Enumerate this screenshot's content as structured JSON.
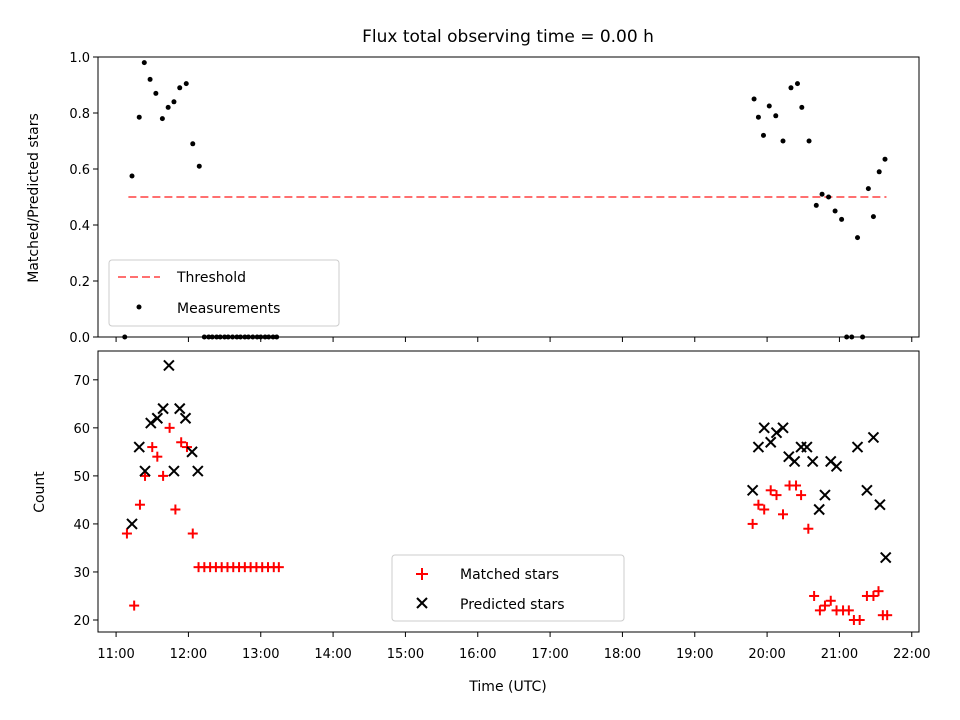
{
  "title": "Flux total observing time = 0.00 h",
  "chart_data": [
    {
      "type": "scatter",
      "ylabel": "Matched/Predicted stars",
      "ylim": [
        0,
        1.0
      ],
      "yticks": [
        "0.0",
        "0.2",
        "0.4",
        "0.6",
        "0.8",
        "1.0"
      ],
      "xlim_hours": [
        10.75,
        22.1
      ],
      "threshold": {
        "name": "Threshold",
        "y": 0.5,
        "x_start": 11.17,
        "x_end": 21.65,
        "color": "#ff7070"
      },
      "legend_position": "lower-left",
      "series": [
        {
          "name": "Measurements",
          "color": "#000000",
          "x": [
            11.12,
            11.22,
            11.32,
            11.39,
            11.47,
            11.55,
            11.64,
            11.72,
            11.8,
            11.88,
            11.97,
            12.06,
            12.15,
            12.22,
            12.28,
            12.33,
            12.39,
            12.44,
            12.5,
            12.55,
            12.61,
            12.67,
            12.72,
            12.78,
            12.83,
            12.89,
            12.95,
            13.0,
            13.06,
            13.11,
            13.17,
            13.22,
            19.82,
            19.88,
            19.95,
            20.03,
            20.12,
            20.22,
            20.33,
            20.42,
            20.48,
            20.58,
            20.68,
            20.76,
            20.85,
            20.94,
            21.03,
            21.1,
            21.17,
            21.25,
            21.32,
            21.4,
            21.47,
            21.55,
            21.63
          ],
          "y": [
            0.0,
            0.575,
            0.785,
            0.98,
            0.92,
            0.87,
            0.78,
            0.82,
            0.84,
            0.89,
            0.905,
            0.69,
            0.61,
            0.0,
            0.0,
            0.0,
            0.0,
            0.0,
            0.0,
            0.0,
            0.0,
            0.0,
            0.0,
            0.0,
            0.0,
            0.0,
            0.0,
            0.0,
            0.0,
            0.0,
            0.0,
            0.0,
            0.85,
            0.785,
            0.72,
            0.825,
            0.79,
            0.7,
            0.89,
            0.905,
            0.82,
            0.7,
            0.47,
            0.51,
            0.5,
            0.45,
            0.42,
            0.0,
            0.0,
            0.355,
            0.0,
            0.53,
            0.43,
            0.59,
            0.635
          ]
        }
      ]
    },
    {
      "type": "scatter",
      "xlabel": "Time (UTC)",
      "ylabel": "Count",
      "ylim": [
        17.5,
        76
      ],
      "yticks": [
        "20",
        "30",
        "40",
        "50",
        "60",
        "70"
      ],
      "xlim_hours": [
        10.75,
        22.1
      ],
      "xticks": [
        "11:00",
        "12:00",
        "13:00",
        "14:00",
        "15:00",
        "16:00",
        "17:00",
        "18:00",
        "19:00",
        "20:00",
        "21:00",
        "22:00"
      ],
      "legend_position": "lower-center",
      "series": [
        {
          "name": "Matched stars",
          "color": "#ff0000",
          "marker": "plus",
          "x": [
            11.15,
            11.25,
            11.33,
            11.4,
            11.5,
            11.57,
            11.65,
            11.74,
            11.82,
            11.9,
            11.98,
            12.06,
            12.14,
            12.22,
            12.3,
            12.38,
            12.46,
            12.54,
            12.62,
            12.7,
            12.78,
            12.86,
            12.94,
            13.02,
            13.1,
            13.18,
            13.25,
            19.8,
            19.88,
            19.96,
            20.05,
            20.13,
            20.22,
            20.31,
            20.4,
            20.47,
            20.57,
            20.65,
            20.73,
            20.8,
            20.88,
            20.96,
            21.05,
            21.13,
            21.2,
            21.28,
            21.38,
            21.47,
            21.54,
            21.6,
            21.66
          ],
          "y": [
            38,
            23,
            44,
            50,
            56,
            54,
            50,
            60,
            43,
            57,
            56,
            38,
            31,
            31,
            31,
            31,
            31,
            31,
            31,
            31,
            31,
            31,
            31,
            31,
            31,
            31,
            31,
            40,
            44,
            43,
            47,
            46,
            42,
            48,
            48,
            46,
            39,
            25,
            22,
            23,
            24,
            22,
            22,
            22,
            20,
            20,
            25,
            25,
            26,
            21,
            21
          ]
        },
        {
          "name": "Predicted stars",
          "color": "#000000",
          "marker": "x",
          "x": [
            11.22,
            11.32,
            11.4,
            11.48,
            11.57,
            11.65,
            11.73,
            11.8,
            11.88,
            11.96,
            12.05,
            12.13,
            19.8,
            19.88,
            19.96,
            20.05,
            20.13,
            20.22,
            20.3,
            20.38,
            20.47,
            20.55,
            20.63,
            20.72,
            20.8,
            20.88,
            20.96,
            21.25,
            21.38,
            21.47,
            21.56,
            21.64
          ],
          "y": [
            40,
            56,
            51,
            61,
            62,
            64,
            73,
            51,
            64,
            62,
            55,
            51,
            47,
            56,
            60,
            57,
            59,
            60,
            54,
            53,
            56,
            56,
            53,
            43,
            46,
            53,
            52,
            56,
            47,
            58,
            44,
            33
          ]
        }
      ]
    }
  ]
}
